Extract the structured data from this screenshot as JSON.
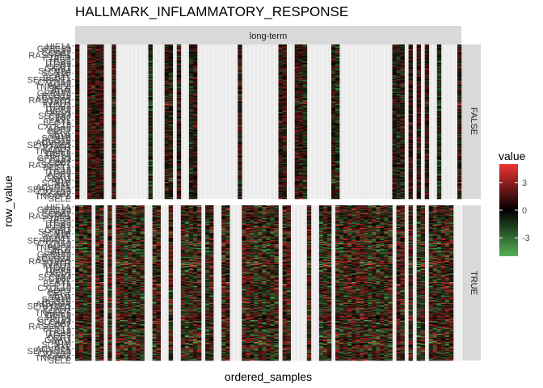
{
  "chart_data": {
    "type": "heatmap",
    "title": "HALLMARK_INFLAMMATORY_RESPONSE",
    "xlabel": "ordered_samples",
    "ylabel": "row_value",
    "facet_column": "long-term",
    "facet_rows": [
      "FALSE",
      "TRUE"
    ],
    "legend": {
      "title": "value",
      "ticks": [
        3,
        0,
        -3
      ],
      "range": [
        -5,
        5
      ],
      "position": "right",
      "colors": {
        "low": "#55b255",
        "mid": "#000000",
        "high": "#ee3333"
      }
    },
    "gene_labels": [
      "HIF1A",
      "CD82",
      "IL18",
      "CCR7",
      "SCN1B",
      "SERPINE1",
      "TNFAIP6",
      "GPR183",
      "RASGRP1",
      "ITGB3",
      "GNAI3",
      "AXL",
      "CXCL10",
      "SELE",
      "RGS16",
      "PTAFR",
      "ITGA5",
      "SLC4A4",
      "BEST1",
      "AQP9",
      "ADM",
      "ACVR2A",
      "KCNJ2"
    ],
    "n_genes": 200,
    "n_samples": 95,
    "panels": [
      {
        "facet": "FALSE",
        "sample_columns_with_data": [
          0,
          3,
          4,
          5,
          6,
          9,
          18,
          22,
          23,
          25,
          28,
          29,
          40,
          50,
          51,
          54,
          55,
          56,
          63,
          64,
          78,
          79,
          80,
          82,
          84,
          86,
          89,
          94
        ],
        "intensity": "weak, mixed red and green, mostly near 0"
      },
      {
        "facet": "TRUE",
        "sample_columns_with_data": [
          0,
          1,
          2,
          3,
          5,
          6,
          8,
          10,
          11,
          12,
          13,
          14,
          15,
          16,
          19,
          20,
          23,
          26,
          27,
          28,
          29,
          30,
          32,
          33,
          36,
          37,
          41,
          42,
          43,
          44,
          45,
          46,
          47,
          48,
          49,
          51,
          52,
          57,
          60,
          61,
          62,
          64,
          65,
          66,
          67,
          68,
          69,
          70,
          71,
          72,
          73,
          74,
          75,
          76,
          77,
          79,
          80,
          82,
          84,
          85,
          87,
          88,
          89,
          90,
          91,
          92
        ],
        "intensity": "strong, mixed red and green"
      }
    ]
  }
}
